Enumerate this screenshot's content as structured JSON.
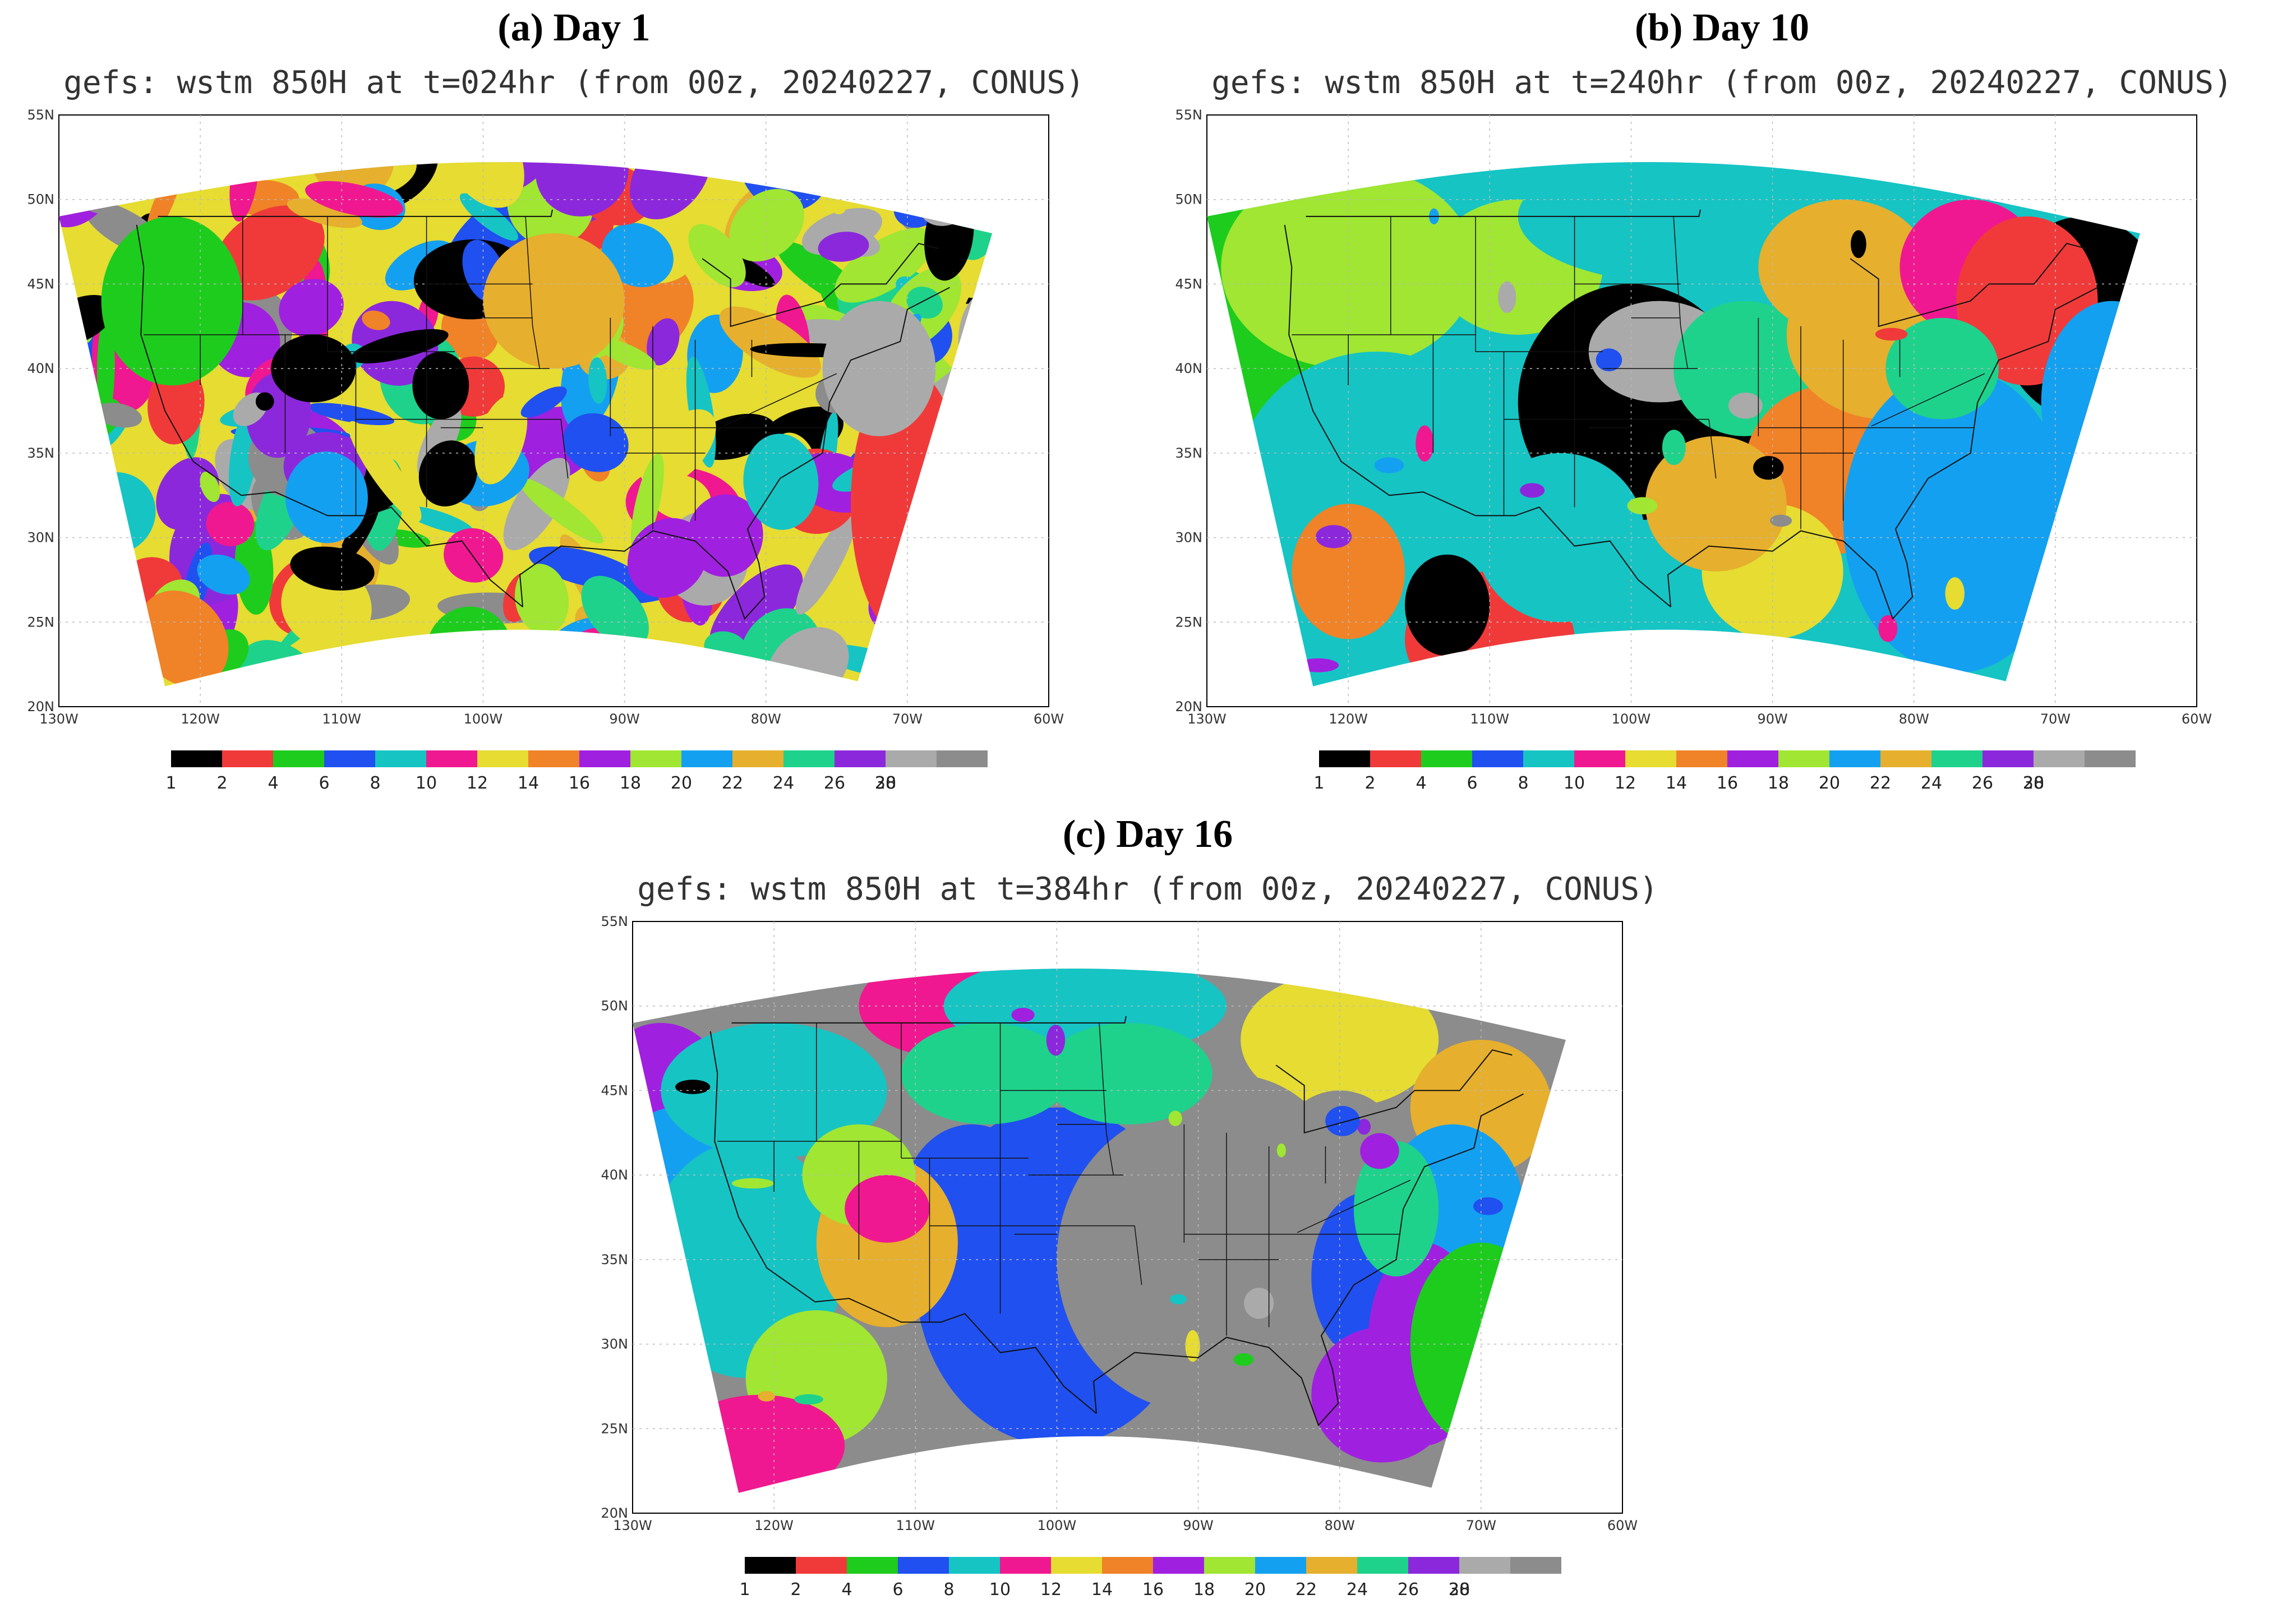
{
  "panels": [
    {
      "id": "a",
      "label": "(a) Day 1",
      "title": "gefs: wstm 850H at t=024hr (from 00z, 20240227, CONUS)"
    },
    {
      "id": "b",
      "label": "(b) Day 10",
      "title": "gefs: wstm 850H at t=240hr (from 00z, 20240227, CONUS)"
    },
    {
      "id": "c",
      "label": "(c) Day 16",
      "title": "gefs: wstm 850H at t=384hr (from 00z, 20240227, CONUS)"
    }
  ],
  "axes": {
    "lat_ticks": [
      "20N",
      "25N",
      "30N",
      "35N",
      "40N",
      "45N",
      "50N",
      "55N"
    ],
    "lon_ticks": [
      "130W",
      "120W",
      "110W",
      "100W",
      "90W",
      "80W",
      "70W",
      "60W"
    ]
  },
  "colorbar": {
    "colors": [
      "#000000",
      "#f03a3a",
      "#1ecc1e",
      "#2050f0",
      "#16c4c4",
      "#f01890",
      "#e6dc32",
      "#f08228",
      "#a020e0",
      "#a0e632",
      "#14a0f0",
      "#e6af2d",
      "#1ed28c",
      "#8c28dc",
      "#aaaaaa",
      "#8c8c8c"
    ],
    "labels": [
      "1",
      "2",
      "4",
      "6",
      "8",
      "10",
      "12",
      "14",
      "16",
      "18",
      "20",
      "22",
      "24",
      "26",
      "28",
      "30"
    ]
  }
}
